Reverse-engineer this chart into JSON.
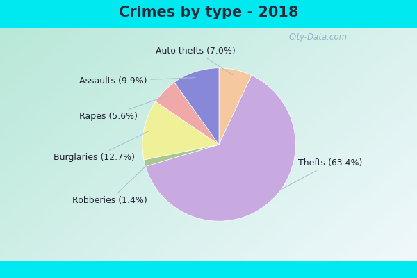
{
  "title": "Crimes by type - 2018",
  "title_color": "#2a2a3a",
  "title_fontsize": 15,
  "title_fontweight": "bold",
  "background_cyan": "#00e8f0",
  "background_inner_left": "#b8e8d0",
  "background_inner_right": "#e8f4f8",
  "label_fontsize": 9,
  "watermark": "City-Data.com",
  "watermark_color": "#88aabb",
  "order_labels": [
    "Auto thefts",
    "Thefts",
    "Robberies",
    "Burglaries",
    "Rapes",
    "Assaults"
  ],
  "order_pcts": [
    7.0,
    63.4,
    1.4,
    12.7,
    5.6,
    9.9
  ],
  "order_colors": [
    "#f5c8a0",
    "#c8aae0",
    "#a8c890",
    "#f0f098",
    "#f0a8a8",
    "#8888d8"
  ],
  "wedge_edgecolor": "white",
  "wedge_linewidth": 0.5
}
